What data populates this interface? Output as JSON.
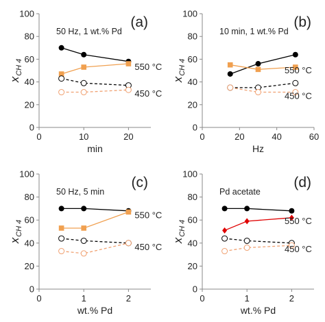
{
  "chart_data": [
    {
      "type": "line",
      "panel_label": "(a)",
      "annotation": "50 Hz, 1 wt.% Pd",
      "xlabel": "min",
      "ylabel": "x",
      "ylabel_sub": "CH 4",
      "xlim": [
        0,
        25
      ],
      "ylim": [
        0,
        100
      ],
      "xticks": [
        0,
        10,
        20
      ],
      "yticks": [
        0,
        20,
        40,
        60,
        80,
        100
      ],
      "temp_labels": [
        "550 °C",
        "450 °C"
      ],
      "series": [
        {
          "x": [
            5,
            10,
            20
          ],
          "y": [
            70,
            64,
            58
          ],
          "color": "#000000",
          "marker": "filled-circle",
          "dash": false
        },
        {
          "x": [
            5,
            10,
            20
          ],
          "y": [
            47,
            53,
            56
          ],
          "color": "#f0a050",
          "marker": "square",
          "dash": false
        },
        {
          "x": [
            5,
            10,
            20
          ],
          "y": [
            43,
            39,
            37
          ],
          "color": "#000000",
          "marker": "open-circle",
          "dash": true
        },
        {
          "x": [
            5,
            10,
            20
          ],
          "y": [
            31,
            31,
            33
          ],
          "color": "#f0a070",
          "marker": "open-circle",
          "dash": true
        }
      ]
    },
    {
      "type": "line",
      "panel_label": "(b)",
      "annotation": "10 min, 1 wt.% Pd",
      "xlabel": "Hz",
      "ylabel": "x",
      "ylabel_sub": "CH 4",
      "xlim": [
        0,
        60
      ],
      "ylim": [
        0,
        100
      ],
      "xticks": [
        0,
        20,
        40,
        60
      ],
      "yticks": [
        0,
        20,
        40,
        60,
        80,
        100
      ],
      "temp_labels": [
        "550 °C",
        "450 °C"
      ],
      "series": [
        {
          "x": [
            15,
            30,
            50
          ],
          "y": [
            47,
            56,
            64
          ],
          "color": "#000000",
          "marker": "filled-circle",
          "dash": false
        },
        {
          "x": [
            15,
            30,
            50
          ],
          "y": [
            55,
            51,
            53
          ],
          "color": "#f0a050",
          "marker": "square",
          "dash": false
        },
        {
          "x": [
            15,
            30,
            50
          ],
          "y": [
            35,
            35,
            39
          ],
          "color": "#000000",
          "marker": "open-circle",
          "dash": true
        },
        {
          "x": [
            15,
            30,
            50
          ],
          "y": [
            35,
            31,
            31
          ],
          "color": "#f0a070",
          "marker": "open-circle",
          "dash": true
        }
      ]
    },
    {
      "type": "line",
      "panel_label": "(c)",
      "annotation": "50 Hz, 5 min",
      "xlabel": "wt.% Pd",
      "ylabel": "x",
      "ylabel_sub": "CH 4",
      "xlim": [
        0,
        2.5
      ],
      "ylim": [
        0,
        100
      ],
      "xticks": [
        0,
        1,
        2
      ],
      "yticks": [
        0,
        20,
        40,
        60,
        80,
        100
      ],
      "temp_labels": [
        "550 °C",
        "450 °C"
      ],
      "series": [
        {
          "x": [
            0.5,
            1,
            2
          ],
          "y": [
            70,
            70,
            68
          ],
          "color": "#000000",
          "marker": "filled-circle",
          "dash": false
        },
        {
          "x": [
            0.5,
            1,
            2
          ],
          "y": [
            53,
            53,
            67
          ],
          "color": "#f0a050",
          "marker": "square",
          "dash": false
        },
        {
          "x": [
            0.5,
            1,
            2
          ],
          "y": [
            44,
            42,
            40
          ],
          "color": "#000000",
          "marker": "open-circle",
          "dash": true
        },
        {
          "x": [
            0.5,
            1,
            2
          ],
          "y": [
            33,
            31,
            40
          ],
          "color": "#f0a070",
          "marker": "open-circle",
          "dash": true
        }
      ]
    },
    {
      "type": "line",
      "panel_label": "(d)",
      "annotation": "Pd acetate",
      "xlabel": "wt.% Pd",
      "ylabel": "x",
      "ylabel_sub": "CH 4",
      "xlim": [
        0,
        2.5
      ],
      "ylim": [
        0,
        100
      ],
      "xticks": [
        0,
        1,
        2
      ],
      "yticks": [
        0,
        20,
        40,
        60,
        80,
        100
      ],
      "temp_labels": [
        "550 °C",
        "450 °C"
      ],
      "series": [
        {
          "x": [
            0.5,
            1,
            2
          ],
          "y": [
            70,
            70,
            68
          ],
          "color": "#000000",
          "marker": "filled-circle",
          "dash": false
        },
        {
          "x": [
            0.5,
            1,
            2
          ],
          "y": [
            51,
            59,
            62
          ],
          "color": "#e00000",
          "marker": "diamond",
          "dash": false
        },
        {
          "x": [
            0.5,
            1,
            2
          ],
          "y": [
            44,
            42,
            40
          ],
          "color": "#000000",
          "marker": "open-circle",
          "dash": true
        },
        {
          "x": [
            0.5,
            1,
            2
          ],
          "y": [
            33,
            36,
            38
          ],
          "color": "#f0a070",
          "marker": "open-circle",
          "dash": true
        }
      ]
    }
  ]
}
